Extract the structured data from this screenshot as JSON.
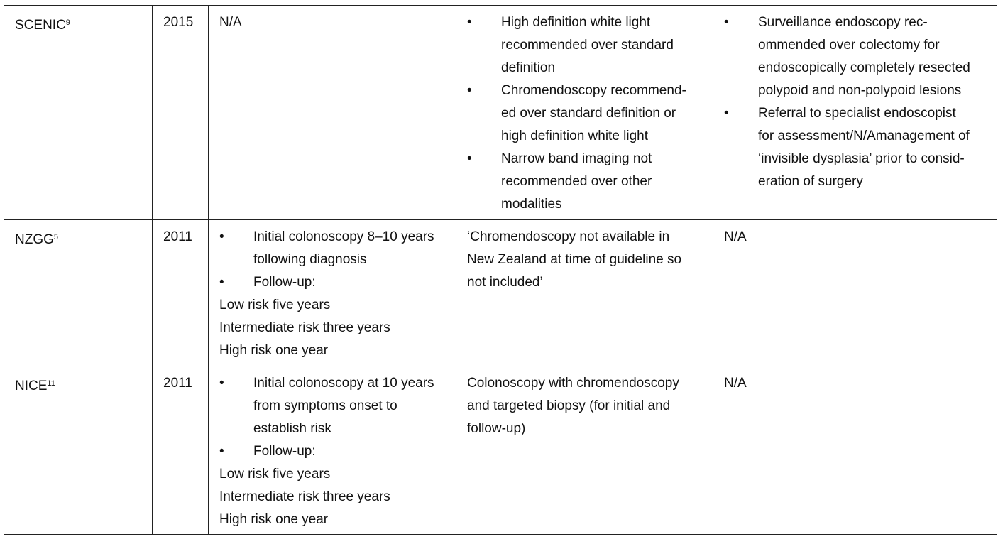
{
  "rows": [
    {
      "guideline": "SCENIC",
      "ref": "9",
      "year": "2015",
      "surveillance": [
        {
          "type": "text",
          "lines": [
            "N/A"
          ]
        }
      ],
      "technique": [
        {
          "type": "bullet",
          "lines": [
            "High definition white light",
            "recommended over standard",
            "definition"
          ]
        },
        {
          "type": "bullet",
          "lines": [
            "Chromendoscopy recommend-",
            "ed over standard definition or",
            "high definition white light"
          ]
        },
        {
          "type": "bullet",
          "lines": [
            "Narrow band imaging not",
            "recommended over other",
            "modalities"
          ]
        }
      ],
      "management": [
        {
          "type": "bullet",
          "lines": [
            "Surveillance endoscopy rec-",
            "ommended over colectomy for",
            "endoscopically completely resected",
            "polypoid and non-polypoid lesions"
          ]
        },
        {
          "type": "bullet",
          "lines": [
            "Referral to specialist endoscopist",
            "for assessment/N/Amanagement of",
            "‘invisible dysplasia’ prior to consid-",
            "eration of surgery"
          ]
        }
      ]
    },
    {
      "guideline": "NZGG",
      "ref": "5",
      "year": "2011",
      "surveillance": [
        {
          "type": "bullet",
          "lines": [
            "Initial colonoscopy 8–10 years",
            "following diagnosis"
          ]
        },
        {
          "type": "bullet",
          "lines": [
            "Follow-up:"
          ]
        },
        {
          "type": "text",
          "lines": [
            "Low risk five years",
            "Intermediate risk three years",
            "High risk one year"
          ]
        }
      ],
      "technique": [
        {
          "type": "text",
          "lines": [
            "‘Chromendoscopy not available in",
            "New Zealand at time of guideline so",
            "not included’"
          ]
        }
      ],
      "management": [
        {
          "type": "text",
          "lines": [
            "N/A"
          ]
        }
      ]
    },
    {
      "guideline": "NICE",
      "ref": "11",
      "year": "2011",
      "surveillance": [
        {
          "type": "bullet",
          "lines": [
            "Initial colonoscopy at 10 years",
            "from symptoms onset to",
            "establish risk"
          ]
        },
        {
          "type": "bullet",
          "lines": [
            "Follow-up:"
          ]
        },
        {
          "type": "text",
          "lines": [
            "Low risk five years",
            "Intermediate risk three years",
            "High risk one year"
          ]
        }
      ],
      "technique": [
        {
          "type": "text",
          "lines": [
            "Colonoscopy with chromendoscopy",
            "and targeted biopsy (for initial and",
            "follow-up)"
          ]
        }
      ],
      "management": [
        {
          "type": "text",
          "lines": [
            "N/A"
          ]
        }
      ]
    }
  ],
  "bullet_char": "•"
}
